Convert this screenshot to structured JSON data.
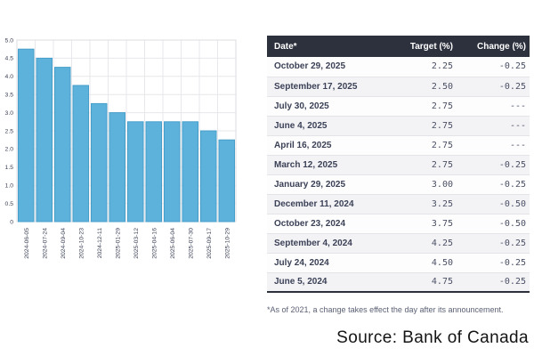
{
  "colors": {
    "bar_fill": "#5db2db",
    "bar_stroke": "#479fc9",
    "grid": "#e7e7ec",
    "plot_border": "#dcdce2",
    "axis_text": "#3d4257",
    "header_bg": "#2d313d",
    "header_text": "#ffffff",
    "row_alt_bg": "#f3f3f6",
    "row_border": "#e3e3e8",
    "date_text": "#3b4156",
    "value_text": "#4b5065",
    "footnote_text": "#5b6175",
    "source_text": "#141414"
  },
  "chart_data": {
    "type": "bar",
    "categories": [
      "2024-06-05",
      "2024-07-24",
      "2024-09-04",
      "2024-10-23",
      "2024-12-11",
      "2025-01-29",
      "2025-03-12",
      "2025-04-16",
      "2025-06-04",
      "2025-07-30",
      "2025-09-17",
      "2025-10-29"
    ],
    "values": [
      4.75,
      4.5,
      4.25,
      3.75,
      3.25,
      3.0,
      2.75,
      2.75,
      2.75,
      2.75,
      2.5,
      2.25
    ],
    "title": "",
    "xlabel": "",
    "ylabel": "",
    "ylim": [
      0,
      5
    ],
    "ytick_step": 0.5,
    "ytick_labels": [
      "0",
      "0.5",
      "1.0",
      "1.5",
      "2.0",
      "2.5",
      "3.0",
      "3.5",
      "4.0",
      "4.5",
      "5.0"
    ],
    "grid": true,
    "legend": false
  },
  "table": {
    "headers": [
      "Date*",
      "Target (%)",
      "Change (%)"
    ],
    "rows": [
      {
        "date": "October 29, 2025",
        "target": "2.25",
        "change": "-0.25"
      },
      {
        "date": "September 17, 2025",
        "target": "2.50",
        "change": "-0.25"
      },
      {
        "date": "July 30, 2025",
        "target": "2.75",
        "change": "---"
      },
      {
        "date": "June 4, 2025",
        "target": "2.75",
        "change": "---"
      },
      {
        "date": "April 16, 2025",
        "target": "2.75",
        "change": "---"
      },
      {
        "date": "March 12, 2025",
        "target": "2.75",
        "change": "-0.25"
      },
      {
        "date": "January 29, 2025",
        "target": "3.00",
        "change": "-0.25"
      },
      {
        "date": "December 11, 2024",
        "target": "3.25",
        "change": "-0.50"
      },
      {
        "date": "October 23, 2024",
        "target": "3.75",
        "change": "-0.50"
      },
      {
        "date": "September 4, 2024",
        "target": "4.25",
        "change": "-0.25"
      },
      {
        "date": "July 24, 2024",
        "target": "4.50",
        "change": "-0.25"
      },
      {
        "date": "June 5, 2024",
        "target": "4.75",
        "change": "-0.25"
      }
    ],
    "footnote": "*As of 2021, a change takes effect the day after its announcement."
  },
  "source": "Source: Bank of Canada"
}
